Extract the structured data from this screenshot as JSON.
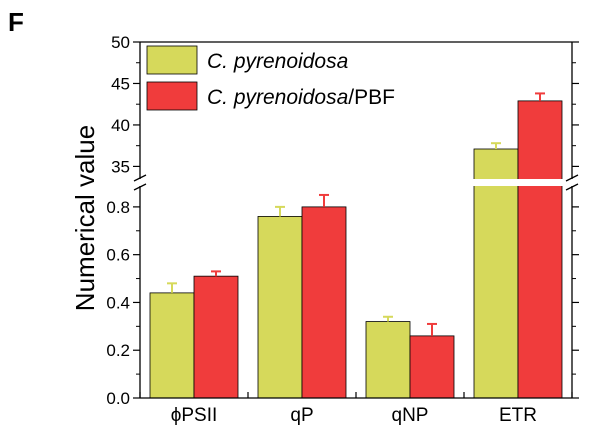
{
  "panel_label": "F",
  "chart_data": {
    "type": "bar",
    "categories": [
      "ϕPSII",
      "qP",
      "qNP",
      "ETR"
    ],
    "ylabel": "Numerical value",
    "xlabel": "",
    "axis_break": true,
    "lower_ylim": [
      0.0,
      0.9
    ],
    "lower_yticks": [
      "0.0",
      "0.2",
      "0.4",
      "0.6",
      "0.8"
    ],
    "upper_ylim": [
      33,
      50
    ],
    "upper_yticks": [
      "35",
      "40",
      "45",
      "50"
    ],
    "legend_position": "top-left",
    "series": [
      {
        "name": "C. pyrenoidosa",
        "name_italic": "C. pyrenoidosa",
        "name_suffix": "",
        "color": "#d6d95b",
        "values": [
          0.44,
          0.76,
          0.32,
          37.1
        ],
        "errors": [
          0.04,
          0.04,
          0.02,
          0.7
        ]
      },
      {
        "name": "C. pyrenoidosa/PBF",
        "name_italic": "C. pyrenoidosa",
        "name_suffix": "/PBF",
        "color": "#f03c3c",
        "values": [
          0.51,
          0.8,
          0.26,
          42.9
        ],
        "errors": [
          0.02,
          0.05,
          0.05,
          0.9
        ]
      }
    ]
  }
}
